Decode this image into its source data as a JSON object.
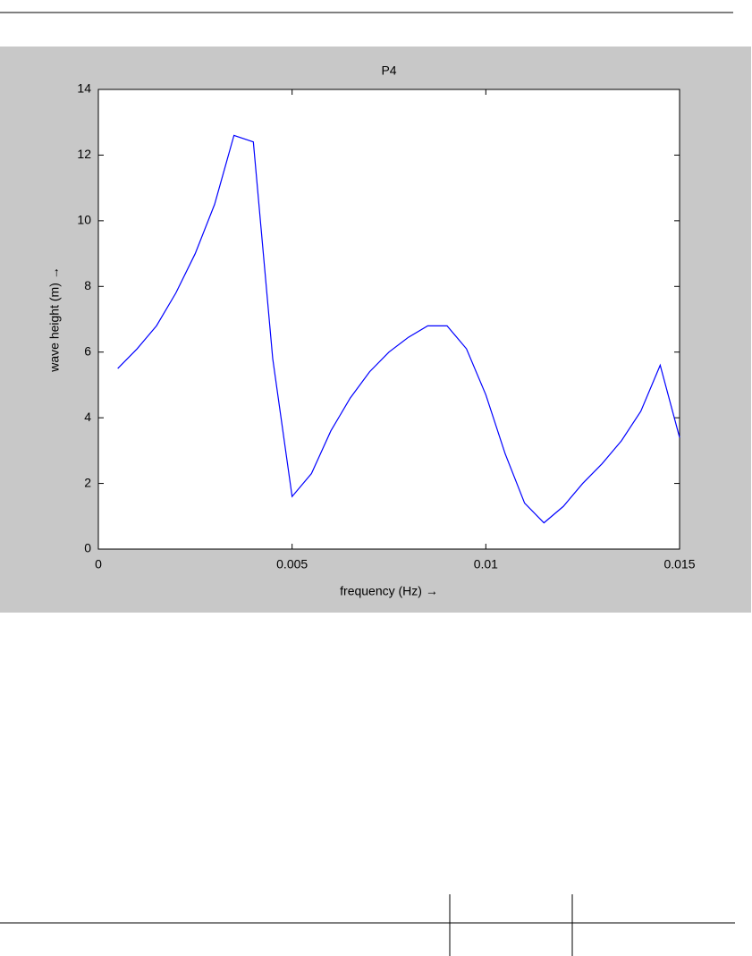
{
  "chart_data": {
    "type": "line",
    "title": "P4",
    "x_label": "frequency (Hz) →",
    "y_label": "wave height (m) →",
    "x": [
      0.0005,
      0.001,
      0.0015,
      0.002,
      0.0025,
      0.003,
      0.0035,
      0.004,
      0.0045,
      0.005,
      0.0055,
      0.006,
      0.0065,
      0.007,
      0.0075,
      0.008,
      0.0085,
      0.009,
      0.0095,
      0.01,
      0.0105,
      0.011,
      0.0115,
      0.012,
      0.0125,
      0.013,
      0.0135,
      0.014,
      0.0145,
      0.015
    ],
    "values": [
      5.5,
      6.1,
      6.8,
      7.8,
      9.0,
      10.5,
      12.6,
      12.4,
      5.8,
      1.6,
      2.3,
      3.6,
      4.6,
      5.4,
      6.0,
      6.45,
      6.8,
      6.8,
      6.1,
      4.7,
      2.9,
      1.4,
      0.8,
      1.3,
      2.0,
      2.6,
      3.3,
      4.2,
      5.6,
      3.4
    ],
    "color": "#0000ff",
    "xlim": [
      0,
      0.015
    ],
    "xticks": [
      0,
      0.005,
      0.01,
      0.015
    ],
    "ylim": [
      0,
      14
    ],
    "yticks": [
      0,
      2,
      4,
      6,
      8,
      10,
      12,
      14
    ]
  }
}
